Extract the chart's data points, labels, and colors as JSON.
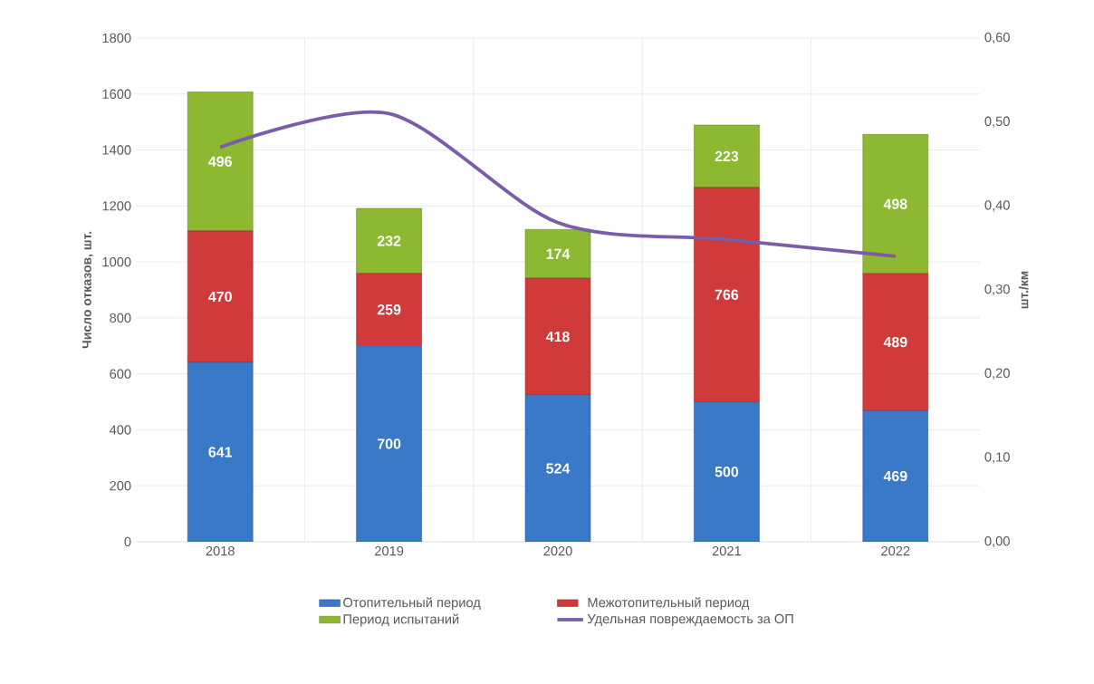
{
  "chart_data": {
    "type": "bar",
    "stacked": true,
    "grid": true,
    "legend": "bottom",
    "marker": "none",
    "categories": [
      "2018",
      "2019",
      "2020",
      "2021",
      "2022"
    ],
    "ylabel": "Число отказов, шт.",
    "y2label": "шт./км",
    "ylim": [
      0,
      1800
    ],
    "yticks": [
      0,
      200,
      400,
      600,
      800,
      1000,
      1200,
      1400,
      1600,
      1800
    ],
    "y2lim": [
      0,
      0.6
    ],
    "y2ticks": [
      {
        "value": 0,
        "label": "0,00"
      },
      {
        "value": 0.1,
        "label": "0,10"
      },
      {
        "value": 0.2,
        "label": "0,20"
      },
      {
        "value": 0.3,
        "label": "0,30"
      },
      {
        "value": 0.4,
        "label": "0,40"
      },
      {
        "value": 0.5,
        "label": "0,50"
      },
      {
        "value": 0.6,
        "label": "0,60"
      }
    ],
    "series": [
      {
        "name": "Отопительный период",
        "color": "#3a78c8",
        "values": [
          641,
          700,
          524,
          500,
          469
        ],
        "value_labels": [
          "641",
          "700",
          "524",
          "500",
          "469"
        ]
      },
      {
        "name": "Межотопительный период",
        "color": "#d03a3a",
        "values": [
          470,
          259,
          418,
          766,
          489
        ],
        "value_labels": [
          "470",
          "259",
          "418",
          "766",
          "489"
        ]
      },
      {
        "name": "Период испытаний",
        "color": "#8cb832",
        "values": [
          496,
          232,
          174,
          223,
          498
        ],
        "value_labels": [
          "496",
          "232",
          "174",
          "223",
          "498"
        ]
      },
      {
        "name": "Удельная повреждаемость за ОП",
        "type": "line",
        "axis": "y2",
        "color": "#7a5ca8",
        "values": [
          0.47,
          0.51,
          0.38,
          0.36,
          0.34
        ]
      }
    ]
  }
}
